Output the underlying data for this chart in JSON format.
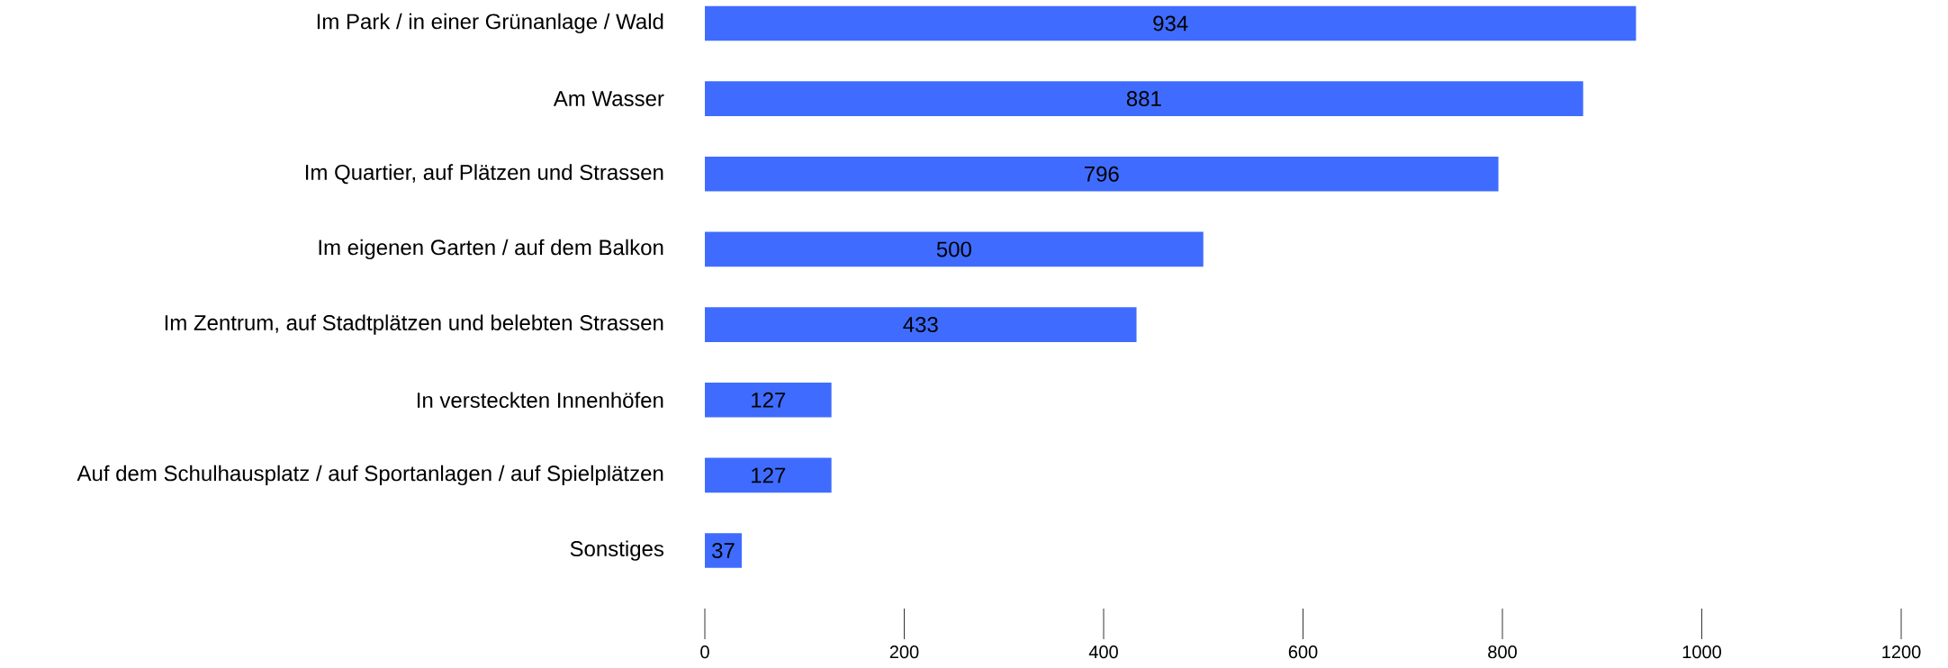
{
  "chart_data": {
    "type": "bar",
    "orientation": "horizontal",
    "categories": [
      "Im Park / in einer Grünanlage / Wald",
      "Am Wasser",
      "Im Quartier, auf Plätzen und Strassen",
      "Im eigenen Garten / auf dem Balkon",
      "Im Zentrum, auf Stadtplätzen und belebten Strassen",
      "In versteckten Innenhöfen",
      "Auf dem Schulhausplatz / auf Sportanlagen / auf Spielplätzen",
      "Sonstiges"
    ],
    "values": [
      934,
      881,
      796,
      500,
      433,
      127,
      127,
      37
    ],
    "color": "#3f6cff",
    "data_labels": true,
    "xlim": [
      0,
      1200
    ],
    "xticks": [
      0,
      200,
      400,
      600,
      800,
      1000,
      1200
    ]
  }
}
